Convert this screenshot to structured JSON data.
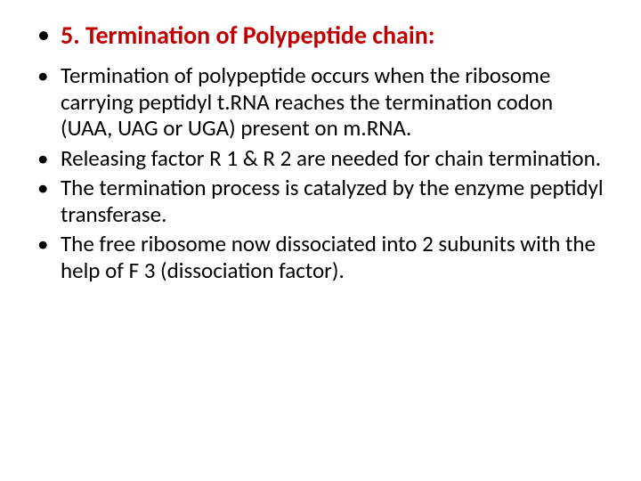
{
  "slide": {
    "heading": "5. Termination of Polypeptide chain:",
    "heading_color": "#c00000",
    "bullet_color": "#000000",
    "body_color": "#000000",
    "background_color": "#ffffff",
    "heading_fontsize": 28,
    "body_fontsize": 25,
    "font_family": "Calibri",
    "bullets": [
      "Termination of polypeptide occurs when the ribosome carrying peptidyl t.RNA reaches the termination codon (UAA, UAG or UGA) present on m.RNA.",
      "Releasing factor R 1 & R 2 are needed for chain termination.",
      "The termination process is catalyzed by the enzyme peptidyl transferase.",
      "The free ribosome now dissociated into 2 subunits with the help of F 3 (dissociation factor)."
    ]
  }
}
